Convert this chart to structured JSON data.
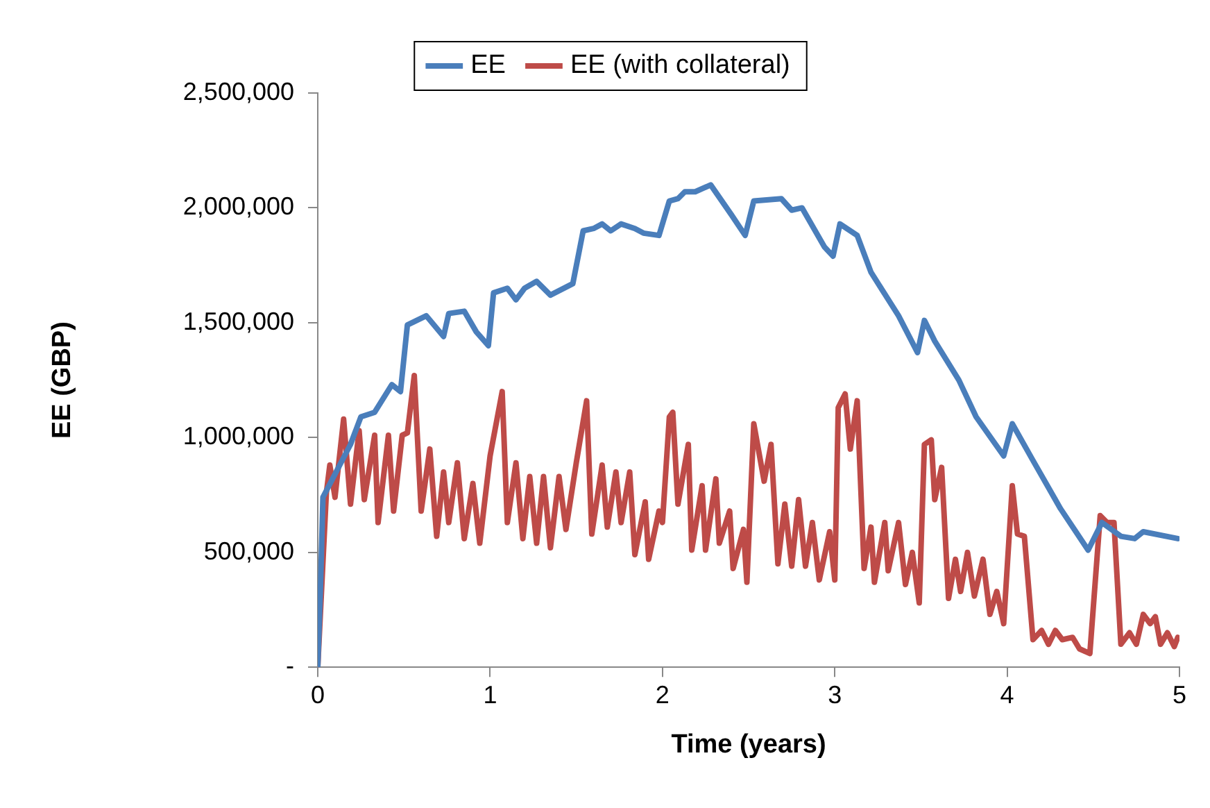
{
  "chart_data": {
    "type": "line",
    "xlabel": "Time (years)",
    "ylabel": "EE (GBP)",
    "xlim": [
      0,
      5
    ],
    "xticks": [
      0,
      1,
      2,
      3,
      4,
      5
    ],
    "ylim": [
      0,
      2500000
    ],
    "yticks": [
      {
        "value": 0,
        "label": "-"
      },
      {
        "value": 500000,
        "label": "500,000"
      },
      {
        "value": 1000000,
        "label": "1,000,000"
      },
      {
        "value": 1500000,
        "label": "1,500,000"
      },
      {
        "value": 2000000,
        "label": "2,000,000"
      },
      {
        "value": 2500000,
        "label": "2,500,000"
      }
    ],
    "grid": false,
    "legend": "top",
    "marker": "none",
    "line_style": "solid",
    "series": [
      {
        "name": "EE",
        "color": "#4a7ebb",
        "x": [
          0,
          0.016,
          0.03,
          0.19,
          0.25,
          0.33,
          0.43,
          0.48,
          0.52,
          0.63,
          0.73,
          0.76,
          0.85,
          0.92,
          0.99,
          1.02,
          1.1,
          1.15,
          1.2,
          1.27,
          1.35,
          1.48,
          1.54,
          1.6,
          1.65,
          1.7,
          1.76,
          1.84,
          1.89,
          1.98,
          2.04,
          2.09,
          2.13,
          2.19,
          2.28,
          2.4,
          2.48,
          2.53,
          2.69,
          2.75,
          2.81,
          2.94,
          2.99,
          3.03,
          3.13,
          3.21,
          3.37,
          3.48,
          3.52,
          3.58,
          3.72,
          3.82,
          3.98,
          4.03,
          4.15,
          4.31,
          4.47,
          4.55,
          4.66,
          4.74,
          4.79,
          4.99
        ],
        "values": [
          0,
          350000,
          740000,
          970000,
          1090000,
          1110000,
          1230000,
          1200000,
          1490000,
          1530000,
          1440000,
          1540000,
          1550000,
          1460000,
          1400000,
          1630000,
          1650000,
          1600000,
          1650000,
          1680000,
          1620000,
          1670000,
          1900000,
          1910000,
          1930000,
          1900000,
          1930000,
          1910000,
          1890000,
          1880000,
          2030000,
          2040000,
          2070000,
          2070000,
          2100000,
          1970000,
          1880000,
          2030000,
          2040000,
          1990000,
          2000000,
          1830000,
          1790000,
          1930000,
          1880000,
          1720000,
          1530000,
          1370000,
          1510000,
          1420000,
          1250000,
          1090000,
          920000,
          1060000,
          900000,
          690000,
          510000,
          630000,
          570000,
          560000,
          590000,
          560000
        ]
      },
      {
        "name": "EE (with collateral)",
        "color": "#be4b48",
        "x": [
          0,
          0.05,
          0.07,
          0.1,
          0.15,
          0.19,
          0.24,
          0.27,
          0.33,
          0.35,
          0.41,
          0.44,
          0.49,
          0.52,
          0.56,
          0.6,
          0.65,
          0.69,
          0.73,
          0.76,
          0.81,
          0.85,
          0.9,
          0.94,
          1,
          1.07,
          1.1,
          1.15,
          1.19,
          1.23,
          1.27,
          1.31,
          1.35,
          1.4,
          1.44,
          1.5,
          1.56,
          1.59,
          1.65,
          1.68,
          1.73,
          1.76,
          1.81,
          1.84,
          1.9,
          1.92,
          1.98,
          2,
          2.04,
          2.06,
          2.09,
          2.15,
          2.17,
          2.23,
          2.25,
          2.31,
          2.33,
          2.39,
          2.41,
          2.47,
          2.49,
          2.53,
          2.59,
          2.63,
          2.67,
          2.71,
          2.75,
          2.79,
          2.83,
          2.87,
          2.91,
          2.97,
          3,
          3.02,
          3.06,
          3.09,
          3.13,
          3.17,
          3.21,
          3.23,
          3.29,
          3.31,
          3.37,
          3.41,
          3.45,
          3.49,
          3.52,
          3.56,
          3.58,
          3.62,
          3.66,
          3.7,
          3.73,
          3.77,
          3.81,
          3.86,
          3.9,
          3.94,
          3.98,
          4.03,
          4.06,
          4.1,
          4.15,
          4.2,
          4.24,
          4.28,
          4.32,
          4.38,
          4.42,
          4.48,
          4.54,
          4.58,
          4.62,
          4.66,
          4.71,
          4.75,
          4.79,
          4.83,
          4.86,
          4.89,
          4.93,
          4.97,
          4.99
        ],
        "values": [
          0,
          760000,
          880000,
          740000,
          1080000,
          710000,
          1030000,
          730000,
          1010000,
          630000,
          1010000,
          680000,
          1010000,
          1020000,
          1270000,
          680000,
          950000,
          570000,
          850000,
          630000,
          890000,
          560000,
          800000,
          540000,
          920000,
          1200000,
          630000,
          890000,
          560000,
          830000,
          540000,
          830000,
          520000,
          830000,
          600000,
          890000,
          1160000,
          580000,
          880000,
          610000,
          850000,
          630000,
          850000,
          490000,
          720000,
          470000,
          680000,
          630000,
          1090000,
          1110000,
          710000,
          970000,
          510000,
          790000,
          510000,
          820000,
          540000,
          680000,
          430000,
          600000,
          370000,
          1060000,
          810000,
          970000,
          450000,
          710000,
          440000,
          730000,
          440000,
          630000,
          380000,
          590000,
          380000,
          1130000,
          1190000,
          950000,
          1160000,
          430000,
          610000,
          370000,
          630000,
          420000,
          630000,
          360000,
          500000,
          280000,
          970000,
          990000,
          730000,
          870000,
          300000,
          470000,
          330000,
          500000,
          310000,
          470000,
          230000,
          330000,
          190000,
          790000,
          580000,
          570000,
          120000,
          160000,
          100000,
          160000,
          120000,
          130000,
          80000,
          60000,
          660000,
          630000,
          630000,
          100000,
          150000,
          100000,
          230000,
          190000,
          220000,
          100000,
          150000,
          90000,
          130000
        ]
      }
    ]
  }
}
